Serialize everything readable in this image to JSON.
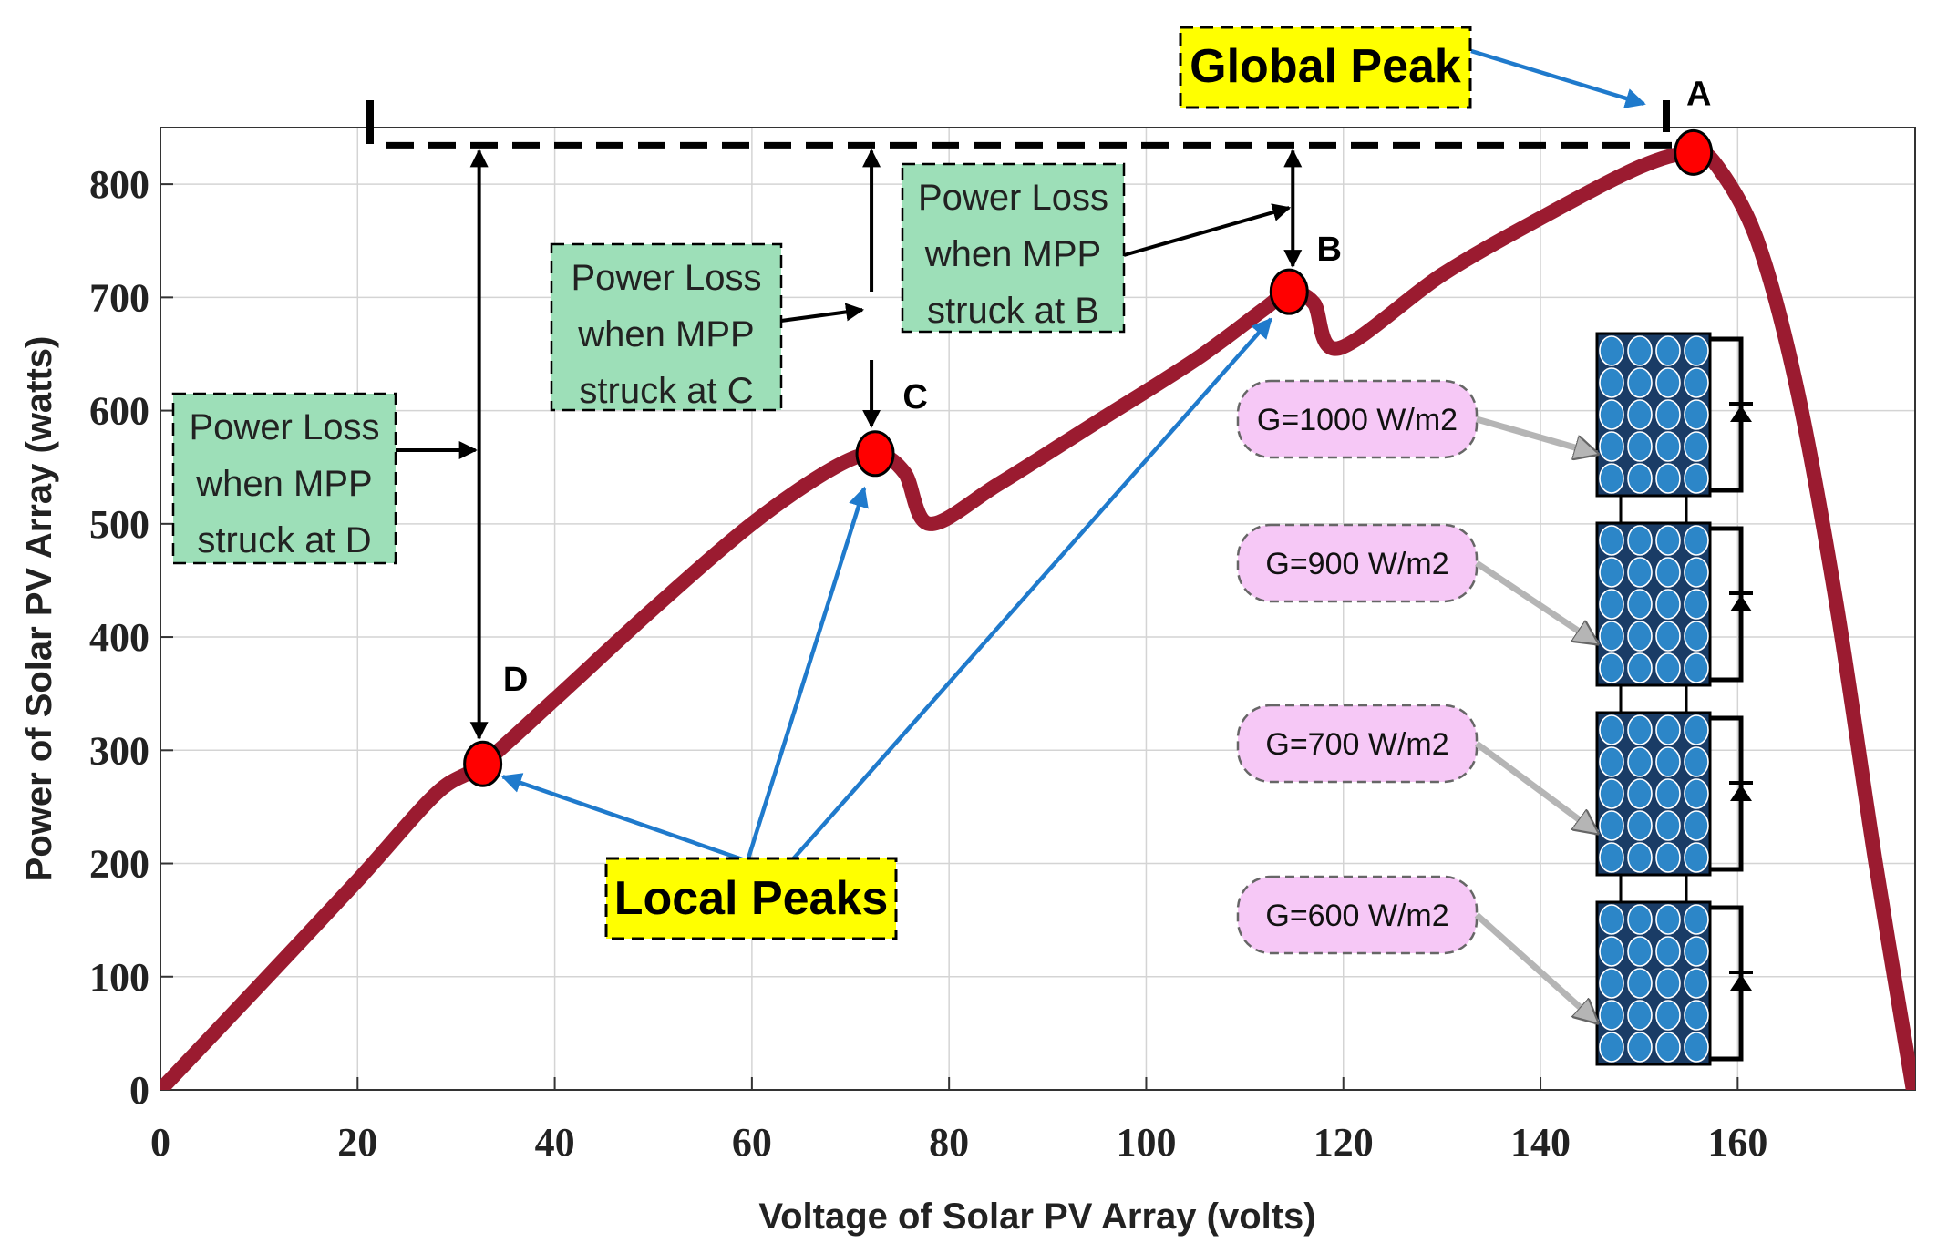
{
  "chart_data": {
    "type": "line",
    "xlabel": "Voltage of Solar PV Array (volts)",
    "ylabel": "Power of Solar PV Array  (watts)",
    "xlim": [
      0,
      180
    ],
    "ylim": [
      0,
      850
    ],
    "xticks": [
      0,
      20,
      40,
      60,
      80,
      100,
      120,
      140,
      160
    ],
    "yticks": [
      0,
      100,
      200,
      300,
      400,
      500,
      600,
      700,
      800
    ],
    "grid": true,
    "series": [
      {
        "color": "#9b1b30",
        "x": [
          0,
          10,
          20,
          28,
          32.7,
          40,
          50,
          60,
          68,
          72.5,
          75.5,
          78,
          85,
          95,
          105,
          112,
          114.5,
          117,
          119.5,
          130,
          140,
          150,
          155.5,
          158,
          162,
          166,
          170,
          174,
          177.8
        ],
        "y": [
          0,
          92,
          185,
          262,
          288,
          345,
          425,
          500,
          548,
          562,
          545,
          500,
          535,
          590,
          645,
          690,
          705,
          695,
          655,
          720,
          770,
          815,
          828,
          815,
          750,
          620,
          430,
          200,
          0
        ]
      }
    ],
    "peaks": [
      {
        "label": "A",
        "x": 155.5,
        "y": 828
      },
      {
        "label": "B",
        "x": 114.5,
        "y": 705
      },
      {
        "label": "C",
        "x": 72.5,
        "y": 562
      },
      {
        "label": "D",
        "x": 32.7,
        "y": 288
      }
    ],
    "annotations": {
      "global_peak": "Global Peak",
      "local_peaks": "Local Peaks",
      "loss_d": [
        "Power Loss",
        "when MPP",
        "struck at D"
      ],
      "loss_c": [
        "Power Loss",
        "when MPP",
        "struck at C"
      ],
      "loss_b": [
        "Power Loss",
        "when MPP",
        "struck at B"
      ]
    },
    "irradiance": [
      "G=1000 W/m2",
      "G=900 W/m2",
      "G=700 W/m2",
      "G=600 W/m2"
    ],
    "colors": {
      "curve": "#9b1b30",
      "peak_marker": "#ff0000",
      "pointer_arrow": "#1f7acc",
      "loss_box": "#9ddfb8",
      "callout_box": "#ffff00",
      "irradiance_box": "#f6c8f6",
      "cell": "#2c86c8"
    }
  }
}
